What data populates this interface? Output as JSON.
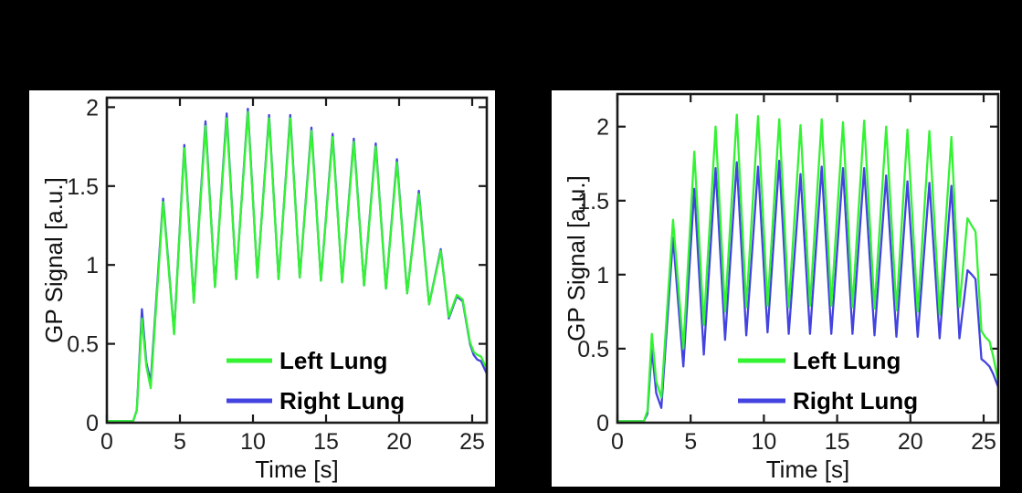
{
  "colors": {
    "background": "#000000",
    "panel_background": "#ffffff",
    "axis": "#1a1a1a",
    "left_lung_green": "#33F333",
    "right_lung_blue": "#4343E0"
  },
  "chart_data": [
    {
      "type": "line",
      "panel": "left",
      "title": "",
      "xlabel": "Time [s]",
      "ylabel": "GP Signal [a.u.]",
      "xlim": [
        0,
        26
      ],
      "ylim": [
        0,
        2.06
      ],
      "xticks": [
        0,
        5,
        10,
        15,
        20,
        25
      ],
      "yticks": [
        0,
        0.5,
        1,
        1.5,
        2
      ],
      "grid": false,
      "legend_position": "inside lower right",
      "series": [
        {
          "name": "Left Lung",
          "color": "#33F333",
          "points": [
            [
              0,
              0.01
            ],
            [
              1.8,
              0.01
            ],
            [
              2.05,
              0.08
            ],
            [
              2.4,
              0.66
            ],
            [
              2.7,
              0.36
            ],
            [
              3.0,
              0.22
            ],
            [
              3.85,
              1.4
            ],
            [
              4.6,
              0.56
            ],
            [
              5.3,
              1.74
            ],
            [
              5.95,
              0.76
            ],
            [
              6.75,
              1.88
            ],
            [
              7.4,
              0.86
            ],
            [
              8.2,
              1.93
            ],
            [
              8.85,
              0.91
            ],
            [
              9.65,
              1.97
            ],
            [
              10.3,
              0.92
            ],
            [
              11.1,
              1.93
            ],
            [
              11.75,
              0.91
            ],
            [
              12.55,
              1.93
            ],
            [
              13.2,
              0.92
            ],
            [
              14.0,
              1.85
            ],
            [
              14.65,
              0.9
            ],
            [
              15.45,
              1.81
            ],
            [
              16.1,
              0.89
            ],
            [
              16.9,
              1.78
            ],
            [
              17.6,
              0.87
            ],
            [
              18.4,
              1.75
            ],
            [
              19.1,
              0.85
            ],
            [
              19.85,
              1.65
            ],
            [
              20.55,
              0.82
            ],
            [
              21.35,
              1.45
            ],
            [
              22.05,
              0.75
            ],
            [
              22.85,
              1.09
            ],
            [
              23.4,
              0.67
            ],
            [
              23.95,
              0.81
            ],
            [
              24.35,
              0.78
            ],
            [
              24.85,
              0.51
            ],
            [
              25.1,
              0.45
            ],
            [
              25.35,
              0.43
            ],
            [
              25.6,
              0.42
            ],
            [
              26,
              0.34
            ]
          ]
        },
        {
          "name": "Right Lung",
          "color": "#4343E0",
          "points": [
            [
              0,
              0.01
            ],
            [
              1.8,
              0.01
            ],
            [
              2.05,
              0.08
            ],
            [
              2.4,
              0.72
            ],
            [
              2.7,
              0.38
            ],
            [
              3.0,
              0.26
            ],
            [
              3.85,
              1.42
            ],
            [
              4.6,
              0.57
            ],
            [
              5.3,
              1.76
            ],
            [
              5.95,
              0.77
            ],
            [
              6.75,
              1.91
            ],
            [
              7.4,
              0.86
            ],
            [
              8.2,
              1.96
            ],
            [
              8.85,
              0.91
            ],
            [
              9.65,
              1.99
            ],
            [
              10.3,
              0.92
            ],
            [
              11.1,
              1.95
            ],
            [
              11.75,
              0.91
            ],
            [
              12.55,
              1.95
            ],
            [
              13.2,
              0.92
            ],
            [
              14.0,
              1.87
            ],
            [
              14.65,
              0.9
            ],
            [
              15.45,
              1.83
            ],
            [
              16.1,
              0.89
            ],
            [
              16.9,
              1.8
            ],
            [
              17.6,
              0.87
            ],
            [
              18.4,
              1.77
            ],
            [
              19.1,
              0.85
            ],
            [
              19.85,
              1.67
            ],
            [
              20.55,
              0.82
            ],
            [
              21.35,
              1.47
            ],
            [
              22.05,
              0.75
            ],
            [
              22.85,
              1.1
            ],
            [
              23.4,
              0.66
            ],
            [
              23.95,
              0.8
            ],
            [
              24.35,
              0.77
            ],
            [
              24.85,
              0.5
            ],
            [
              25.1,
              0.43
            ],
            [
              25.35,
              0.4
            ],
            [
              25.6,
              0.39
            ],
            [
              26,
              0.31
            ]
          ]
        }
      ]
    },
    {
      "type": "line",
      "panel": "right",
      "title": "",
      "xlabel": "Time [s]",
      "ylabel": "GP Signal [a.u.]",
      "xlim": [
        0,
        26
      ],
      "ylim": [
        0,
        2.22
      ],
      "xticks": [
        0,
        5,
        10,
        15,
        20,
        25
      ],
      "yticks": [
        0,
        0.5,
        1,
        1.5,
        2
      ],
      "grid": false,
      "legend_position": "inside lower right",
      "series": [
        {
          "name": "Left Lung",
          "color": "#33F333",
          "points": [
            [
              0,
              0.01
            ],
            [
              1.8,
              0.01
            ],
            [
              2.05,
              0.08
            ],
            [
              2.35,
              0.6
            ],
            [
              2.65,
              0.28
            ],
            [
              3.0,
              0.17
            ],
            [
              3.8,
              1.37
            ],
            [
              4.5,
              0.5
            ],
            [
              5.25,
              1.83
            ],
            [
              5.9,
              0.66
            ],
            [
              6.7,
              2.0
            ],
            [
              7.35,
              0.75
            ],
            [
              8.15,
              2.08
            ],
            [
              8.8,
              0.78
            ],
            [
              9.6,
              2.07
            ],
            [
              10.25,
              0.79
            ],
            [
              11.05,
              2.05
            ],
            [
              11.7,
              0.78
            ],
            [
              12.5,
              2.01
            ],
            [
              13.15,
              0.79
            ],
            [
              13.95,
              2.05
            ],
            [
              14.6,
              0.79
            ],
            [
              15.4,
              2.03
            ],
            [
              16.05,
              0.78
            ],
            [
              16.85,
              2.04
            ],
            [
              17.55,
              0.77
            ],
            [
              18.35,
              2.0
            ],
            [
              19.05,
              0.76
            ],
            [
              19.8,
              1.98
            ],
            [
              20.5,
              0.75
            ],
            [
              21.3,
              1.97
            ],
            [
              22.0,
              0.73
            ],
            [
              22.8,
              1.93
            ],
            [
              23.35,
              0.78
            ],
            [
              23.9,
              1.38
            ],
            [
              24.2,
              1.33
            ],
            [
              24.45,
              1.29
            ],
            [
              24.85,
              0.62
            ],
            [
              25.1,
              0.58
            ],
            [
              25.4,
              0.55
            ],
            [
              25.65,
              0.45
            ],
            [
              26,
              0.28
            ]
          ]
        },
        {
          "name": "Right Lung",
          "color": "#4343E0",
          "points": [
            [
              0,
              0.01
            ],
            [
              1.8,
              0.01
            ],
            [
              2.05,
              0.06
            ],
            [
              2.35,
              0.5
            ],
            [
              2.65,
              0.2
            ],
            [
              3.0,
              0.1
            ],
            [
              3.8,
              1.25
            ],
            [
              4.5,
              0.38
            ],
            [
              5.25,
              1.58
            ],
            [
              5.9,
              0.46
            ],
            [
              6.7,
              1.72
            ],
            [
              7.35,
              0.56
            ],
            [
              8.15,
              1.76
            ],
            [
              8.8,
              0.59
            ],
            [
              9.6,
              1.73
            ],
            [
              10.25,
              0.61
            ],
            [
              11.05,
              1.77
            ],
            [
              11.7,
              0.6
            ],
            [
              12.5,
              1.68
            ],
            [
              13.15,
              0.6
            ],
            [
              13.95,
              1.73
            ],
            [
              14.6,
              0.6
            ],
            [
              15.4,
              1.72
            ],
            [
              16.05,
              0.6
            ],
            [
              16.85,
              1.72
            ],
            [
              17.55,
              0.59
            ],
            [
              18.35,
              1.67
            ],
            [
              19.05,
              0.58
            ],
            [
              19.8,
              1.63
            ],
            [
              20.5,
              0.58
            ],
            [
              21.3,
              1.62
            ],
            [
              22.0,
              0.57
            ],
            [
              22.8,
              1.6
            ],
            [
              23.35,
              0.57
            ],
            [
              23.9,
              1.03
            ],
            [
              24.2,
              1.0
            ],
            [
              24.45,
              0.97
            ],
            [
              24.85,
              0.43
            ],
            [
              25.1,
              0.41
            ],
            [
              25.4,
              0.38
            ],
            [
              25.65,
              0.33
            ],
            [
              26,
              0.24
            ]
          ]
        }
      ]
    }
  ]
}
